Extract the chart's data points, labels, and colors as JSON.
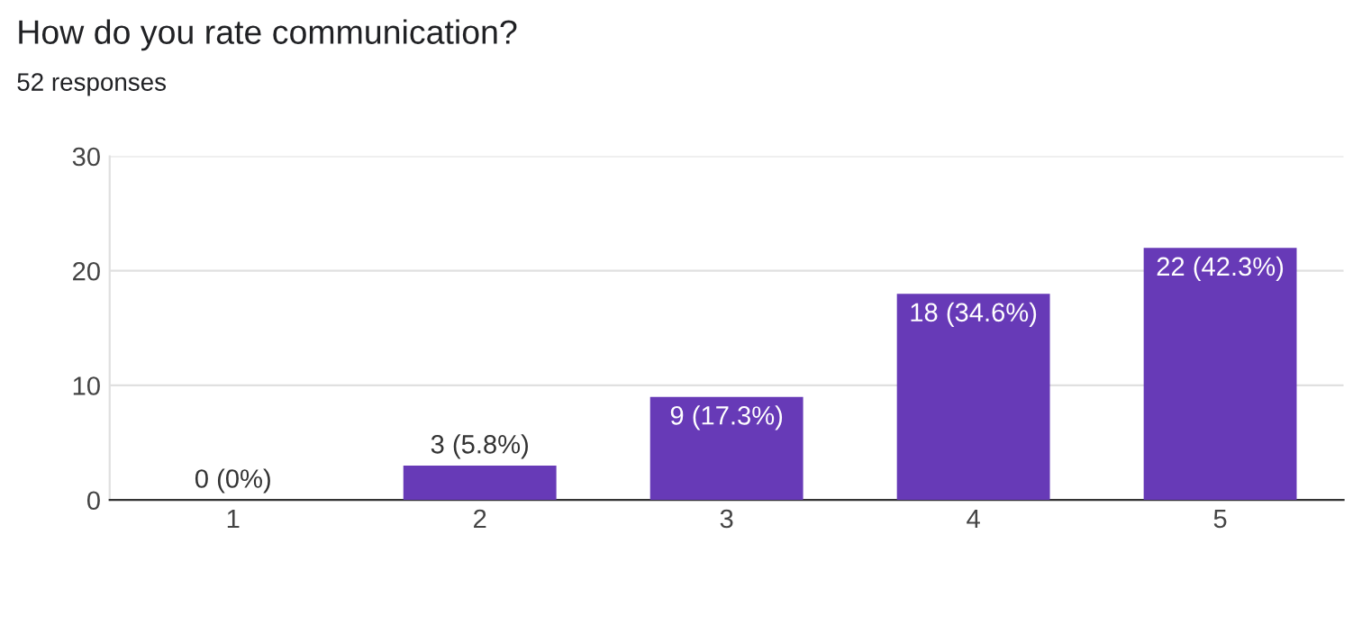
{
  "chart_data": {
    "type": "bar",
    "title": "How do you rate communication?",
    "subtitle": "52 responses",
    "categories": [
      "1",
      "2",
      "3",
      "4",
      "5"
    ],
    "values": [
      0,
      3,
      9,
      18,
      22
    ],
    "value_labels": [
      "0 (0%)",
      "3 (5.8%)",
      "9 (17.3%)",
      "18 (34.6%)",
      "22 (42.3%)"
    ],
    "color": "#673ab7",
    "ylim": [
      0,
      30
    ],
    "yticks": [
      0,
      10,
      20,
      30
    ],
    "grid": "y",
    "legend": false
  }
}
